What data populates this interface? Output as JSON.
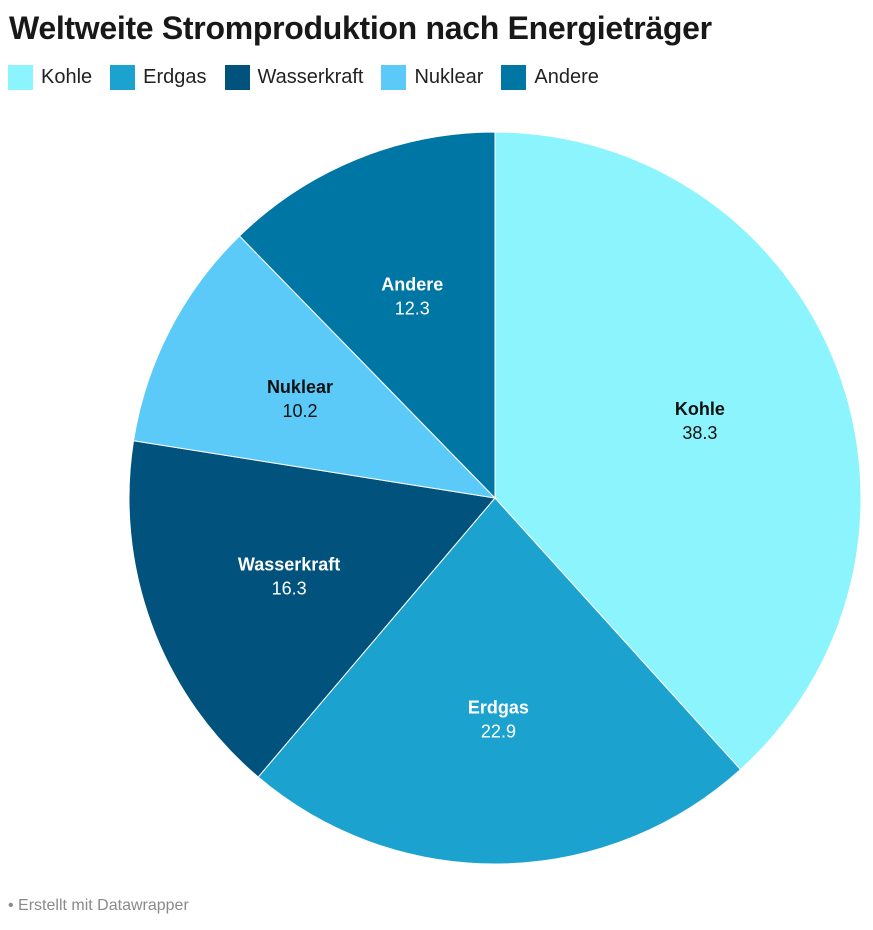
{
  "title": "Weltweite Stromproduktion nach Energieträger",
  "footer": "• Erstellt mit Datawrapper",
  "chart_data": {
    "type": "pie",
    "title": "Weltweite Stromproduktion nach Energieträger",
    "legend_position": "top-left",
    "start_angle_deg": 0,
    "direction": "clockwise",
    "slices": [
      {
        "label": "Kohle",
        "value": 38.3,
        "color": "#8cf4fc",
        "text_color": "#111111"
      },
      {
        "label": "Erdgas",
        "value": 22.9,
        "color": "#1ca2cf",
        "text_color": "#ffffff"
      },
      {
        "label": "Wasserkraft",
        "value": 16.3,
        "color": "#01527c",
        "text_color": "#ffffff"
      },
      {
        "label": "Nuklear",
        "value": 10.2,
        "color": "#5ccaf8",
        "text_color": "#111111"
      },
      {
        "label": "Andere",
        "value": 12.3,
        "color": "#0076a4",
        "text_color": "#ffffff"
      }
    ]
  }
}
